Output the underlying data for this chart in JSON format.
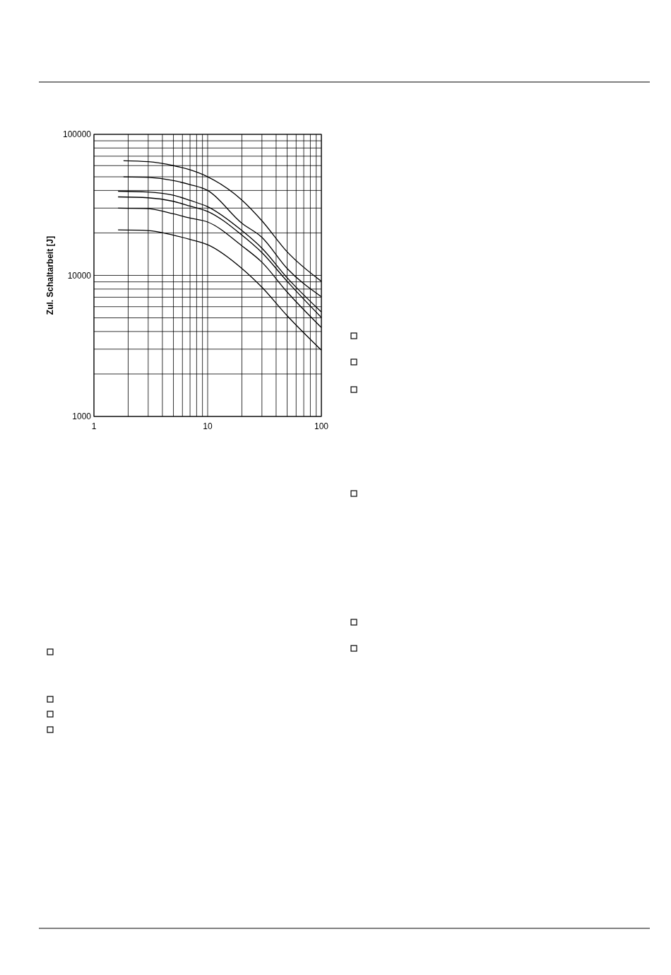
{
  "chart_data": {
    "type": "line",
    "ylabel": "Zul. Schaltarbeit [J]",
    "log": "xy",
    "grid": true,
    "marker": "none",
    "line_style": "solid",
    "xlim": [
      1,
      100
    ],
    "ylim": [
      1000,
      100000
    ],
    "xticks": [
      1,
      10,
      100
    ],
    "yticks": [
      1000,
      10000,
      100000
    ],
    "series": [
      {
        "color": "#000000",
        "x": [
          1.82,
          3,
          5,
          7,
          10,
          20,
          30,
          50,
          100
        ],
        "values": [
          65000,
          64000,
          60000,
          56000,
          50000,
          34200,
          24400,
          14700,
          9080
        ]
      },
      {
        "color": "#000000",
        "x": [
          1.82,
          3,
          5,
          7,
          10,
          20,
          30,
          50,
          100
        ],
        "values": [
          50000,
          49500,
          47000,
          44000,
          40000,
          23400,
          18600,
          11200,
          7060
        ]
      },
      {
        "color": "#000000",
        "x": [
          1.63,
          3,
          5,
          7,
          10,
          20,
          30,
          50,
          100
        ],
        "values": [
          39500,
          39000,
          37000,
          34000,
          30700,
          20800,
          15600,
          9620,
          5500
        ]
      },
      {
        "color": "#000000",
        "x": [
          1.63,
          3,
          5,
          7,
          10,
          20,
          30,
          50,
          100
        ],
        "values": [
          36000,
          35500,
          33500,
          31000,
          28400,
          19300,
          14500,
          9080,
          5030
        ]
      },
      {
        "color": "#000000",
        "x": [
          1.63,
          3,
          5,
          7,
          10,
          20,
          30,
          50,
          100
        ],
        "values": [
          30000,
          29700,
          27300,
          25500,
          23900,
          16200,
          12400,
          7620,
          4270
        ]
      },
      {
        "color": "#000000",
        "x": [
          1.63,
          3,
          5,
          7,
          10,
          20,
          30,
          50,
          100
        ],
        "values": [
          21000,
          20800,
          19300,
          18000,
          16500,
          11200,
          8240,
          5180,
          2950
        ]
      }
    ]
  }
}
